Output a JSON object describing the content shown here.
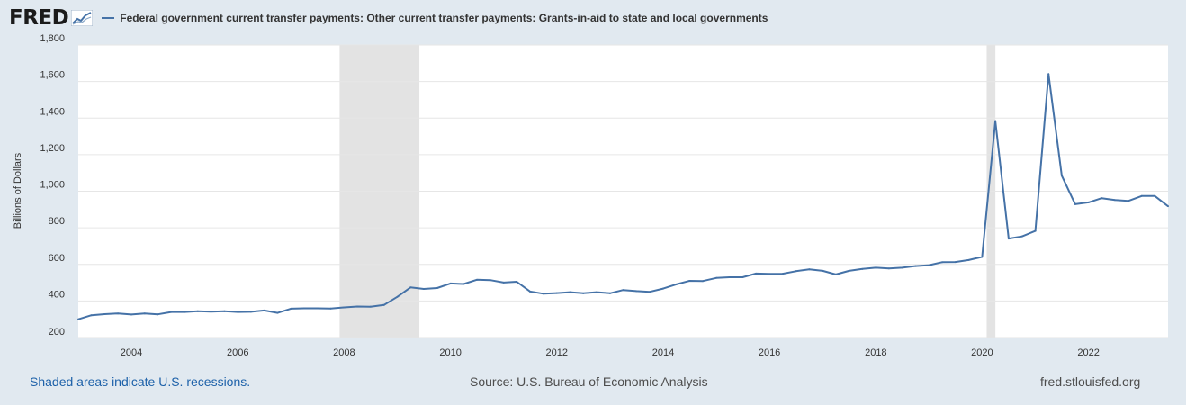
{
  "header": {
    "logo_text": "FRED",
    "logo_icon": "line-chart-icon",
    "legend_color": "#4572a7"
  },
  "footer": {
    "recession_note": "Shaded areas indicate U.S. recessions.",
    "source": "Source: U.S. Bureau of Economic Analysis",
    "site": "fred.stlouisfed.org"
  },
  "chart_data": {
    "type": "line",
    "title": "",
    "xlabel": "",
    "ylabel": "Billions of Dollars",
    "ylim": [
      200,
      1800
    ],
    "xlim": [
      "2003-01-01",
      "2023-07-01"
    ],
    "y_ticks": [
      200,
      400,
      600,
      800,
      1000,
      1200,
      1400,
      1600,
      1800
    ],
    "y_tick_labels": [
      "200",
      "400",
      "600",
      "800",
      "1,000",
      "1,200",
      "1,400",
      "1,600",
      "1,800"
    ],
    "x_ticks": [
      "2004-01-01",
      "2006-01-01",
      "2008-01-01",
      "2010-01-01",
      "2012-01-01",
      "2014-01-01",
      "2016-01-01",
      "2018-01-01",
      "2020-01-01",
      "2022-01-01"
    ],
    "x_tick_labels": [
      "2004",
      "2006",
      "2008",
      "2010",
      "2012",
      "2014",
      "2016",
      "2018",
      "2020",
      "2022"
    ],
    "grid": true,
    "legend_position": "top-left",
    "line_color": "#4572a7",
    "recession_color": "#e3e3e3",
    "recessions": [
      {
        "start": "2007-12-01",
        "end": "2009-06-01"
      },
      {
        "start": "2020-02-01",
        "end": "2020-04-01"
      }
    ],
    "series": [
      {
        "name": "Federal government current transfer payments: Other current transfer payments: Grants-in-aid to state and local governments",
        "x": [
          "2003-01-01",
          "2003-04-01",
          "2003-07-01",
          "2003-10-01",
          "2004-01-01",
          "2004-04-01",
          "2004-07-01",
          "2004-10-01",
          "2005-01-01",
          "2005-04-01",
          "2005-07-01",
          "2005-10-01",
          "2006-01-01",
          "2006-04-01",
          "2006-07-01",
          "2006-10-01",
          "2007-01-01",
          "2007-04-01",
          "2007-07-01",
          "2007-10-01",
          "2008-01-01",
          "2008-04-01",
          "2008-07-01",
          "2008-10-01",
          "2009-01-01",
          "2009-04-01",
          "2009-07-01",
          "2009-10-01",
          "2010-01-01",
          "2010-04-01",
          "2010-07-01",
          "2010-10-01",
          "2011-01-01",
          "2011-04-01",
          "2011-07-01",
          "2011-10-01",
          "2012-01-01",
          "2012-04-01",
          "2012-07-01",
          "2012-10-01",
          "2013-01-01",
          "2013-04-01",
          "2013-07-01",
          "2013-10-01",
          "2014-01-01",
          "2014-04-01",
          "2014-07-01",
          "2014-10-01",
          "2015-01-01",
          "2015-04-01",
          "2015-07-01",
          "2015-10-01",
          "2016-01-01",
          "2016-04-01",
          "2016-07-01",
          "2016-10-01",
          "2017-01-01",
          "2017-04-01",
          "2017-07-01",
          "2017-10-01",
          "2018-01-01",
          "2018-04-01",
          "2018-07-01",
          "2018-10-01",
          "2019-01-01",
          "2019-04-01",
          "2019-07-01",
          "2019-10-01",
          "2020-01-01",
          "2020-04-01",
          "2020-07-01",
          "2020-10-01",
          "2021-01-01",
          "2021-04-01",
          "2021-07-01",
          "2021-10-01",
          "2022-01-01",
          "2022-04-01",
          "2022-07-01",
          "2022-10-01",
          "2023-01-01",
          "2023-04-01",
          "2023-07-01"
        ],
        "values": [
          300,
          322,
          328,
          332,
          326,
          332,
          327,
          340,
          340,
          344,
          342,
          344,
          340,
          341,
          348,
          335,
          358,
          360,
          360,
          359,
          365,
          370,
          369,
          378,
          423,
          474,
          466,
          471,
          496,
          493,
          516,
          514,
          501,
          505,
          452,
          440,
          443,
          448,
          442,
          448,
          442,
          460,
          454,
          450,
          468,
          491,
          510,
          509,
          526,
          530,
          530,
          550,
          548,
          549,
          563,
          573,
          565,
          545,
          565,
          575,
          582,
          578,
          582,
          591,
          596,
          612,
          613,
          624,
          641,
          1384,
          741,
          753,
          783,
          1641,
          1085,
          929,
          939,
          962,
          952,
          947,
          974,
          974,
          918
        ]
      }
    ]
  }
}
